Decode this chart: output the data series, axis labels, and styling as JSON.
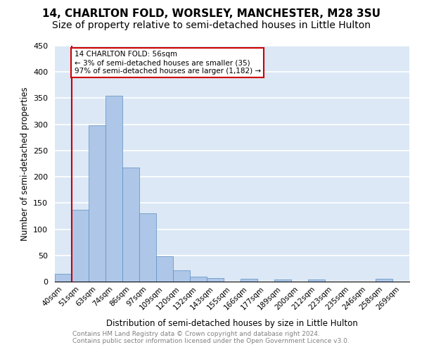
{
  "title_line1": "14, CHARLTON FOLD, WORSLEY, MANCHESTER, M28 3SU",
  "title_line2": "Size of property relative to semi-detached houses in Little Hulton",
  "xlabel": "Distribution of semi-detached houses by size in Little Hulton",
  "ylabel": "Number of semi-detached properties",
  "footer_line1": "Contains HM Land Registry data © Crown copyright and database right 2024.",
  "footer_line2": "Contains public sector information licensed under the Open Government Licence v3.0.",
  "bin_labels": [
    "40sqm",
    "51sqm",
    "63sqm",
    "74sqm",
    "86sqm",
    "97sqm",
    "109sqm",
    "120sqm",
    "132sqm",
    "143sqm",
    "155sqm",
    "166sqm",
    "177sqm",
    "189sqm",
    "200sqm",
    "212sqm",
    "223sqm",
    "235sqm",
    "246sqm",
    "258sqm",
    "269sqm"
  ],
  "bar_values": [
    15,
    137,
    298,
    355,
    217,
    130,
    49,
    21,
    10,
    7,
    0,
    5,
    0,
    4,
    0,
    4,
    0,
    0,
    0,
    5,
    0
  ],
  "bar_color": "#aec6e8",
  "bar_edge_color": "#5a8fc2",
  "vline_x": 1.5,
  "vline_color": "#cc0000",
  "annotation_text": "14 CHARLTON FOLD: 56sqm\n← 3% of semi-detached houses are smaller (35)\n97% of semi-detached houses are larger (1,182) →",
  "annotation_box_color": "#cc0000",
  "ylim": [
    0,
    450
  ],
  "yticks": [
    0,
    50,
    100,
    150,
    200,
    250,
    300,
    350,
    400,
    450
  ],
  "background_color": "#dce8f5",
  "grid_color": "#ffffff",
  "title_fontsize": 11,
  "subtitle_fontsize": 10
}
